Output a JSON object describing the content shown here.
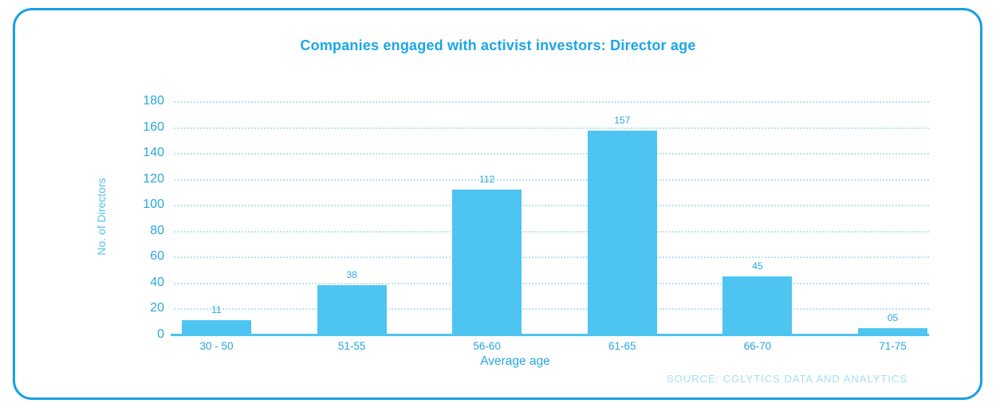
{
  "chart_data": {
    "type": "bar",
    "title": "Companies engaged with activist investors: Director age",
    "categories": [
      "30 - 50",
      "51-55",
      "56-60",
      "61-65",
      "66-70",
      "71-75"
    ],
    "values": [
      11,
      38,
      112,
      157,
      45,
      5
    ],
    "value_labels": [
      "11",
      "38",
      "112",
      "157",
      "45",
      "05"
    ],
    "xlabel": "Average age",
    "ylabel": "No. of Directors",
    "ylim": [
      0,
      180
    ],
    "yticks": [
      180,
      160,
      140,
      120,
      100,
      80,
      60,
      40,
      20,
      0
    ],
    "grid": "horizontal dotted gridlines at every 20 units",
    "legend": "none",
    "source": "SOURCE: CGLYTICS DATA AND ANALYTICS"
  },
  "colors": {
    "card_border": "#18a0e4",
    "title_text": "#1ba6e8",
    "bar_fill": "#4ec4f0",
    "axis_line": "#4ec4f0",
    "gridline": "#b9e2f4",
    "tick_text": "#2aa7e0",
    "y_axis_title_text": "#58c0ec",
    "source_text": "#a6dcf4",
    "background": "#ffffff"
  }
}
